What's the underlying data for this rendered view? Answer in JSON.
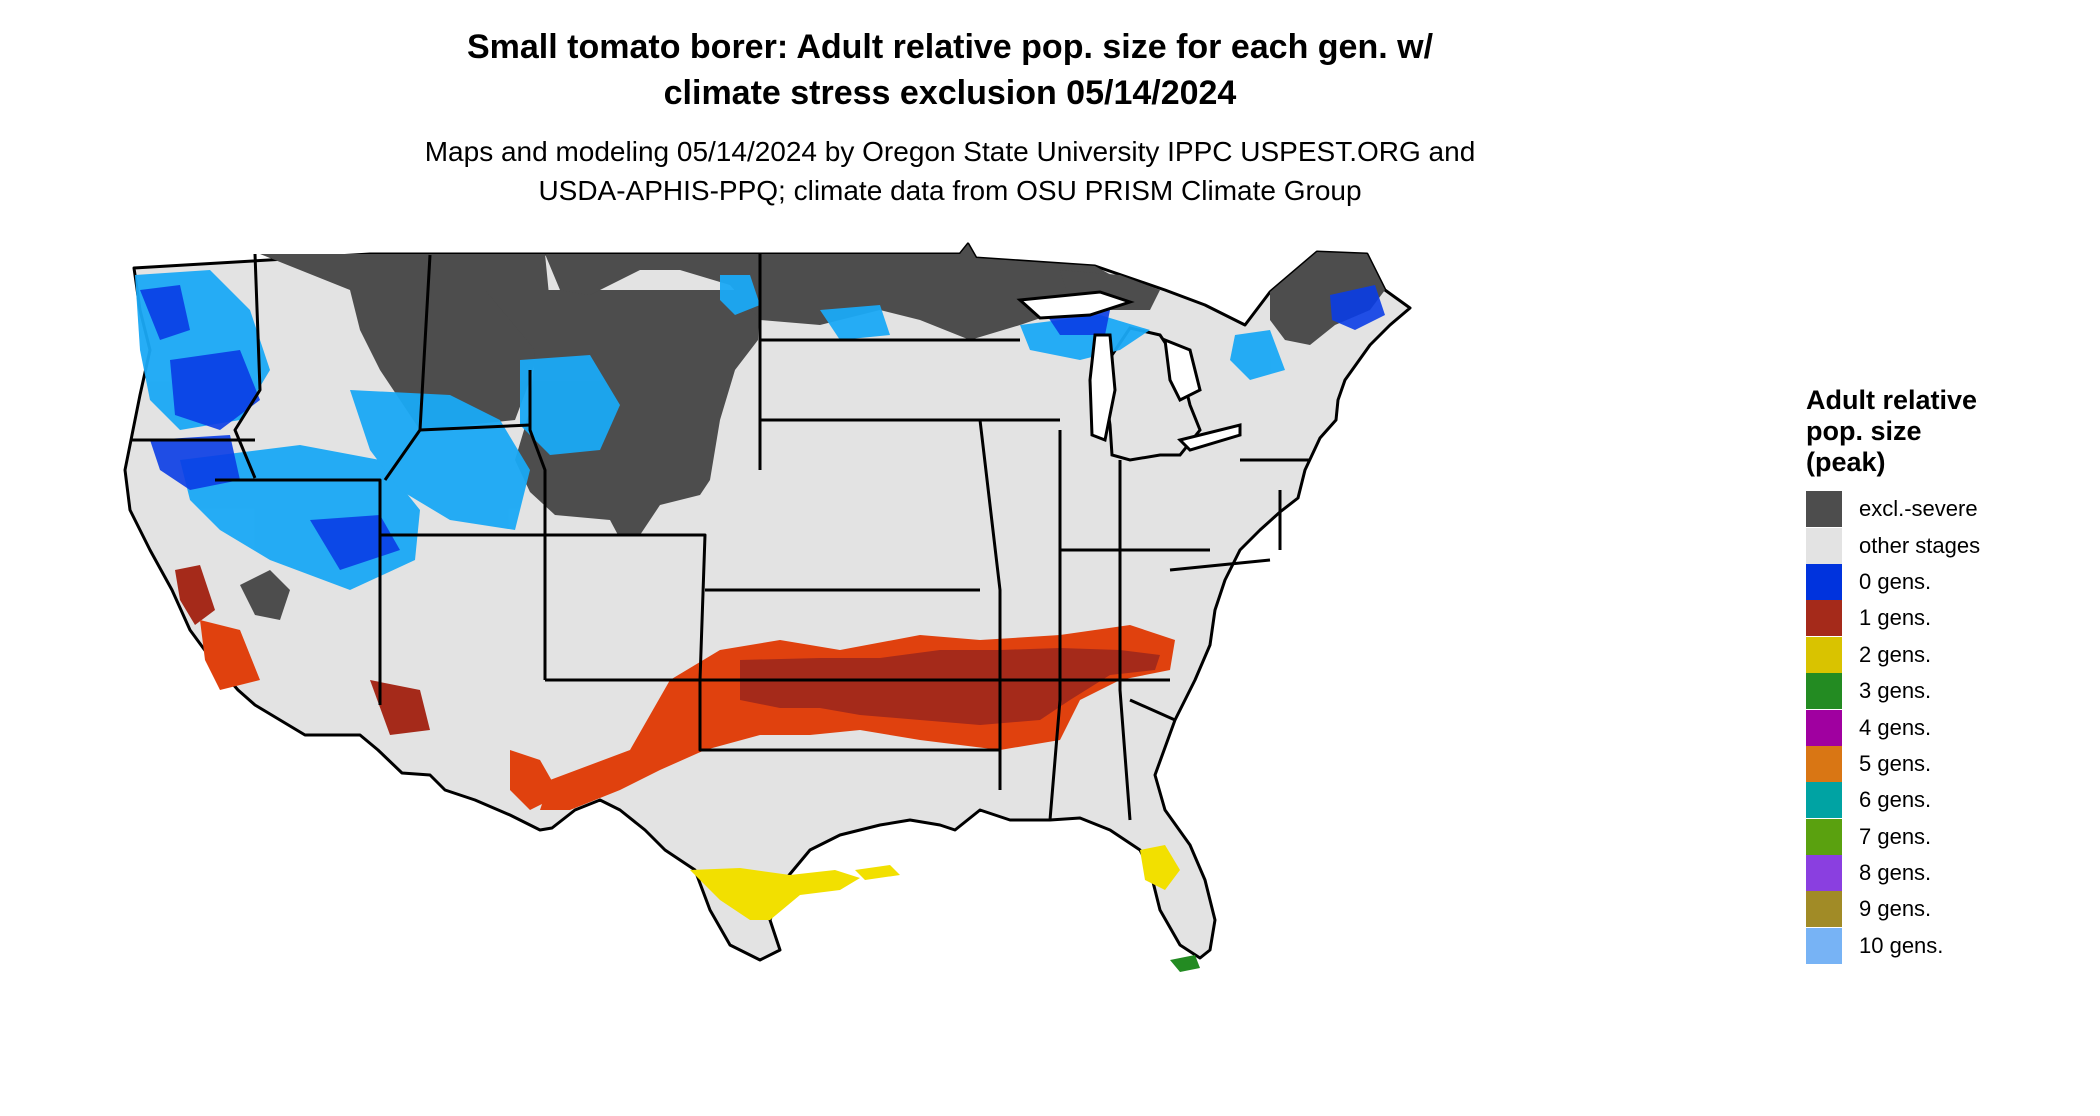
{
  "title": {
    "line1": "Small tomato borer: Adult relative pop. size for each gen. w/",
    "line2": "climate stress exclusion 05/14/2024"
  },
  "subtitle": {
    "line1": "Maps and modeling 05/14/2024 by Oregon State University IPPC USPEST.ORG and",
    "line2": "USDA-APHIS-PPQ; climate data from OSU PRISM Climate Group"
  },
  "legend": {
    "title_lines": [
      "Adult relative",
      "pop. size",
      "(peak)"
    ],
    "items": [
      {
        "label": "excl.-severe",
        "color": "#4d4d4d"
      },
      {
        "label": "other stages",
        "color": "#e3e3e3"
      },
      {
        "label": "0 gens.",
        "color": "#0033dd"
      },
      {
        "label": "1 gens.",
        "color": "#a52a1a"
      },
      {
        "label": "2 gens.",
        "color": "#d9c300"
      },
      {
        "label": "3 gens.",
        "color": "#238b22"
      },
      {
        "label": "4 gens.",
        "color": "#a000a0"
      },
      {
        "label": "5 gens.",
        "color": "#d97614"
      },
      {
        "label": "6 gens.",
        "color": "#00a3a3"
      },
      {
        "label": "7 gens.",
        "color": "#5aa10f"
      },
      {
        "label": "8 gens.",
        "color": "#8a3fe0"
      },
      {
        "label": "9 gens.",
        "color": "#a18b26"
      },
      {
        "label": "10 gens.",
        "color": "#77b3f5"
      }
    ]
  },
  "map": {
    "colors": {
      "land": "#e3e3e3",
      "excluded": "#4d4d4d",
      "zero_gen_dark": "#0a3de6",
      "zero_gen_light": "#1aa9f5",
      "one_gen_dark": "#a52a1a",
      "one_gen_light": "#e0410e",
      "two_gen": "#f2e000",
      "three_gen": "#238b22",
      "border": "#000000"
    }
  }
}
